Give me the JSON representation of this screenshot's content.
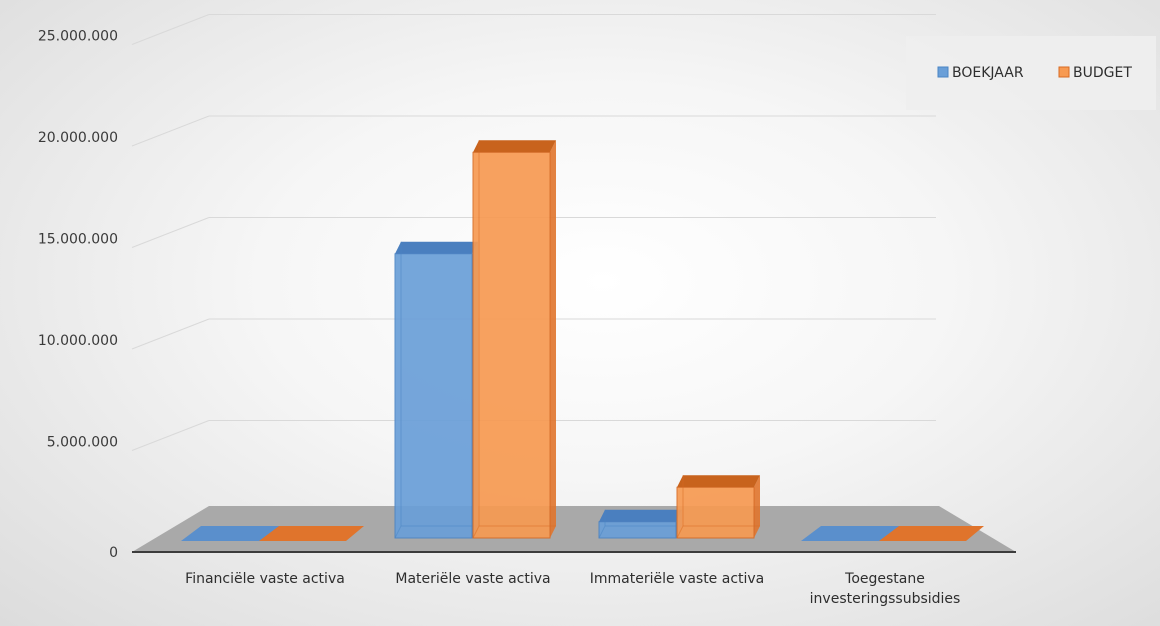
{
  "chart_data": {
    "type": "bar",
    "categories": [
      "Financiële vaste activa",
      "Materiële vaste activa",
      "Immateriële vaste activa",
      "Toegestane investeringssubsidies"
    ],
    "category_lines": [
      [
        "Financiële vaste activa"
      ],
      [
        "Materiële vaste activa"
      ],
      [
        "Immateriële vaste activa"
      ],
      [
        "Toegestane",
        "investeringssubsidies"
      ]
    ],
    "series": [
      {
        "name": "BOEKJAAR",
        "values": [
          0,
          14000000,
          800000,
          0
        ]
      },
      {
        "name": "BUDGET",
        "values": [
          0,
          19000000,
          2500000,
          0
        ]
      }
    ],
    "ylim": [
      0,
      25000000
    ],
    "yticks": [
      0,
      5000000,
      10000000,
      15000000,
      20000000,
      25000000
    ],
    "ytick_labels": [
      "0",
      "5.000.000",
      "10.000.000",
      "15.000.000",
      "20.000.000",
      "25.000.000"
    ],
    "title": "",
    "xlabel": "",
    "ylabel": "",
    "grid": true,
    "three_d": true,
    "legend_position": "top-right",
    "colors": {
      "BOEKJAAR": {
        "front": "#6a9fd8",
        "top": "#4a7fbf",
        "side": "#5a8fcc",
        "edge": "#4a84c4"
      },
      "BUDGET": {
        "front": "#f79a52",
        "top": "#c8631d",
        "side": "#e0742c",
        "edge": "#d86a22"
      },
      "floor": "#a9a9a9",
      "floor_front": "#3c3c3c",
      "gridline": "#d9d9d9",
      "legend_bg": "#eeeeee"
    }
  }
}
